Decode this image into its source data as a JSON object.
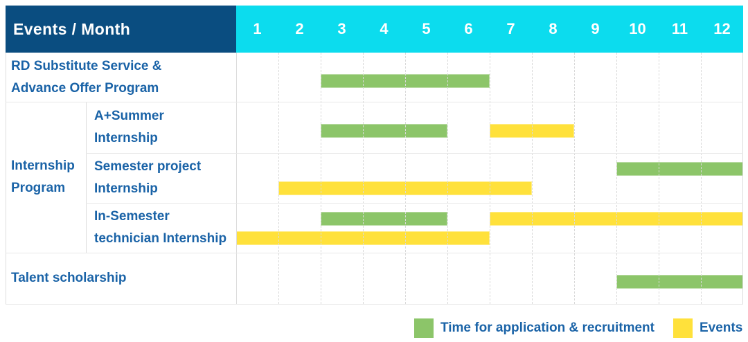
{
  "header": {
    "title": "Events / Month"
  },
  "legend": {
    "recruitment": "Time for application & recruitment",
    "events": "Events"
  },
  "colors": {
    "header_bg": "#0A4D80",
    "month_header_bg": "#0CDCEE",
    "header_text": "#FFFFFF",
    "row_label_text": "#1A63A7",
    "recruitment": "#8CC569",
    "events": "#FFE13B",
    "grid_line": "#E8E8E8",
    "month_grid_line": "#D9D9D9"
  },
  "chart_data": {
    "type": "bar",
    "subtype": "gantt",
    "title": "Events / Month",
    "x_ticks": [
      "1",
      "2",
      "3",
      "4",
      "5",
      "6",
      "7",
      "8",
      "9",
      "10",
      "11",
      "12"
    ],
    "x_range": [
      1,
      12
    ],
    "grid": true,
    "legend_position": "bottom-right",
    "series_legend": [
      {
        "name": "Time for application & recruitment",
        "color": "#8CC569"
      },
      {
        "name": "Events",
        "color": "#FFE13B"
      }
    ],
    "row_groups": [
      {
        "group_label": null,
        "rows": [
          {
            "label": "RD Substitute Service & Advance Offer Program",
            "label_lines": [
              "RD Substitute Service &",
              "Advance Offer Program"
            ],
            "bars": [
              {
                "kind": "recruitment",
                "start_month": 3,
                "end_month": 6,
                "line": "middle"
              }
            ]
          }
        ]
      },
      {
        "group_label": "Internship Program",
        "group_label_lines": [
          "Internship",
          "Program"
        ],
        "rows": [
          {
            "label": "A+Summer Internship",
            "label_lines": [
              "A+Summer",
              "Internship"
            ],
            "bars": [
              {
                "kind": "recruitment",
                "start_month": 3,
                "end_month": 5,
                "line": "middle"
              },
              {
                "kind": "events",
                "start_month": 7,
                "end_month": 8,
                "line": "middle"
              }
            ]
          },
          {
            "label": "Semester project Internship",
            "label_lines": [
              "Semester project",
              "Internship"
            ],
            "bars": [
              {
                "kind": "recruitment",
                "start_month": 10,
                "end_month": 12,
                "line": "top"
              },
              {
                "kind": "events",
                "start_month": 2,
                "end_month": 7,
                "line": "bottom"
              }
            ]
          },
          {
            "label": "In-Semester technician Internship",
            "label_lines": [
              "In-Semester",
              "technician Internship"
            ],
            "bars": [
              {
                "kind": "recruitment",
                "start_month": 3,
                "end_month": 5,
                "line": "top"
              },
              {
                "kind": "events",
                "start_month": 7,
                "end_month": 12,
                "line": "top"
              },
              {
                "kind": "events",
                "start_month": 1,
                "end_month": 6,
                "line": "bottom"
              }
            ]
          }
        ]
      },
      {
        "group_label": null,
        "rows": [
          {
            "label": "Talent scholarship",
            "label_lines": [
              "Talent scholarship"
            ],
            "bars": [
              {
                "kind": "recruitment",
                "start_month": 10,
                "end_month": 12,
                "line": "middle"
              }
            ]
          }
        ]
      }
    ]
  }
}
